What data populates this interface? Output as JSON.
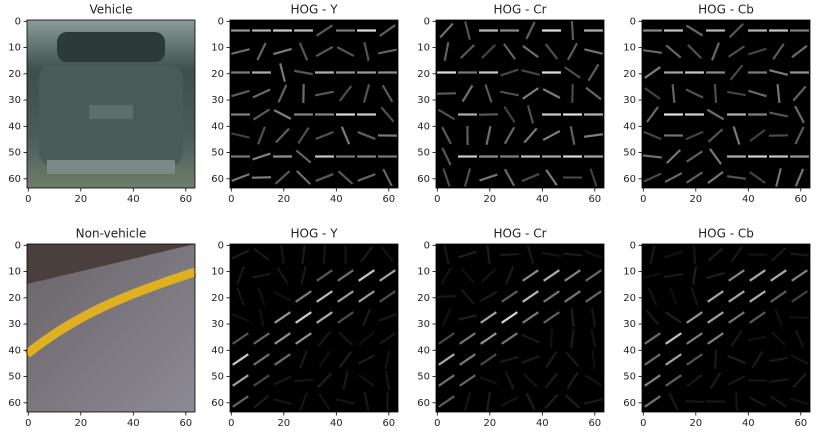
{
  "chart_data": [
    {
      "type": "image",
      "title": "Vehicle",
      "xlim": [
        -0.5,
        63.5
      ],
      "ylim": [
        63.5,
        -0.5
      ],
      "xticks": [
        0,
        20,
        40,
        60
      ],
      "yticks": [
        0,
        10,
        20,
        30,
        40,
        50,
        60
      ]
    },
    {
      "type": "image",
      "title": "HOG - Y",
      "xlim": [
        -0.5,
        63.5
      ],
      "ylim": [
        63.5,
        -0.5
      ],
      "xticks": [
        0,
        20,
        40,
        60
      ],
      "yticks": [
        0,
        10,
        20,
        30,
        40,
        50,
        60
      ]
    },
    {
      "type": "image",
      "title": "HOG - Cr",
      "xlim": [
        -0.5,
        63.5
      ],
      "ylim": [
        63.5,
        -0.5
      ],
      "xticks": [
        0,
        20,
        40,
        60
      ],
      "yticks": [
        0,
        10,
        20,
        30,
        40,
        50,
        60
      ]
    },
    {
      "type": "image",
      "title": "HOG - Cb",
      "xlim": [
        -0.5,
        63.5
      ],
      "ylim": [
        63.5,
        -0.5
      ],
      "xticks": [
        0,
        20,
        40,
        60
      ],
      "yticks": [
        0,
        10,
        20,
        30,
        40,
        50,
        60
      ]
    },
    {
      "type": "image",
      "title": "Non-vehicle",
      "xlim": [
        -0.5,
        63.5
      ],
      "ylim": [
        63.5,
        -0.5
      ],
      "xticks": [
        0,
        20,
        40,
        60
      ],
      "yticks": [
        0,
        10,
        20,
        30,
        40,
        50,
        60
      ]
    },
    {
      "type": "image",
      "title": "HOG - Y",
      "xlim": [
        -0.5,
        63.5
      ],
      "ylim": [
        63.5,
        -0.5
      ],
      "xticks": [
        0,
        20,
        40,
        60
      ],
      "yticks": [
        0,
        10,
        20,
        30,
        40,
        50,
        60
      ]
    },
    {
      "type": "image",
      "title": "HOG - Cr",
      "xlim": [
        -0.5,
        63.5
      ],
      "ylim": [
        63.5,
        -0.5
      ],
      "xticks": [
        0,
        20,
        40,
        60
      ],
      "yticks": [
        0,
        10,
        20,
        30,
        40,
        50,
        60
      ]
    },
    {
      "type": "image",
      "title": "HOG - Cb",
      "xlim": [
        -0.5,
        63.5
      ],
      "ylim": [
        63.5,
        -0.5
      ],
      "xticks": [
        0,
        20,
        40,
        60
      ],
      "yticks": [
        0,
        10,
        20,
        30,
        40,
        50,
        60
      ]
    }
  ]
}
